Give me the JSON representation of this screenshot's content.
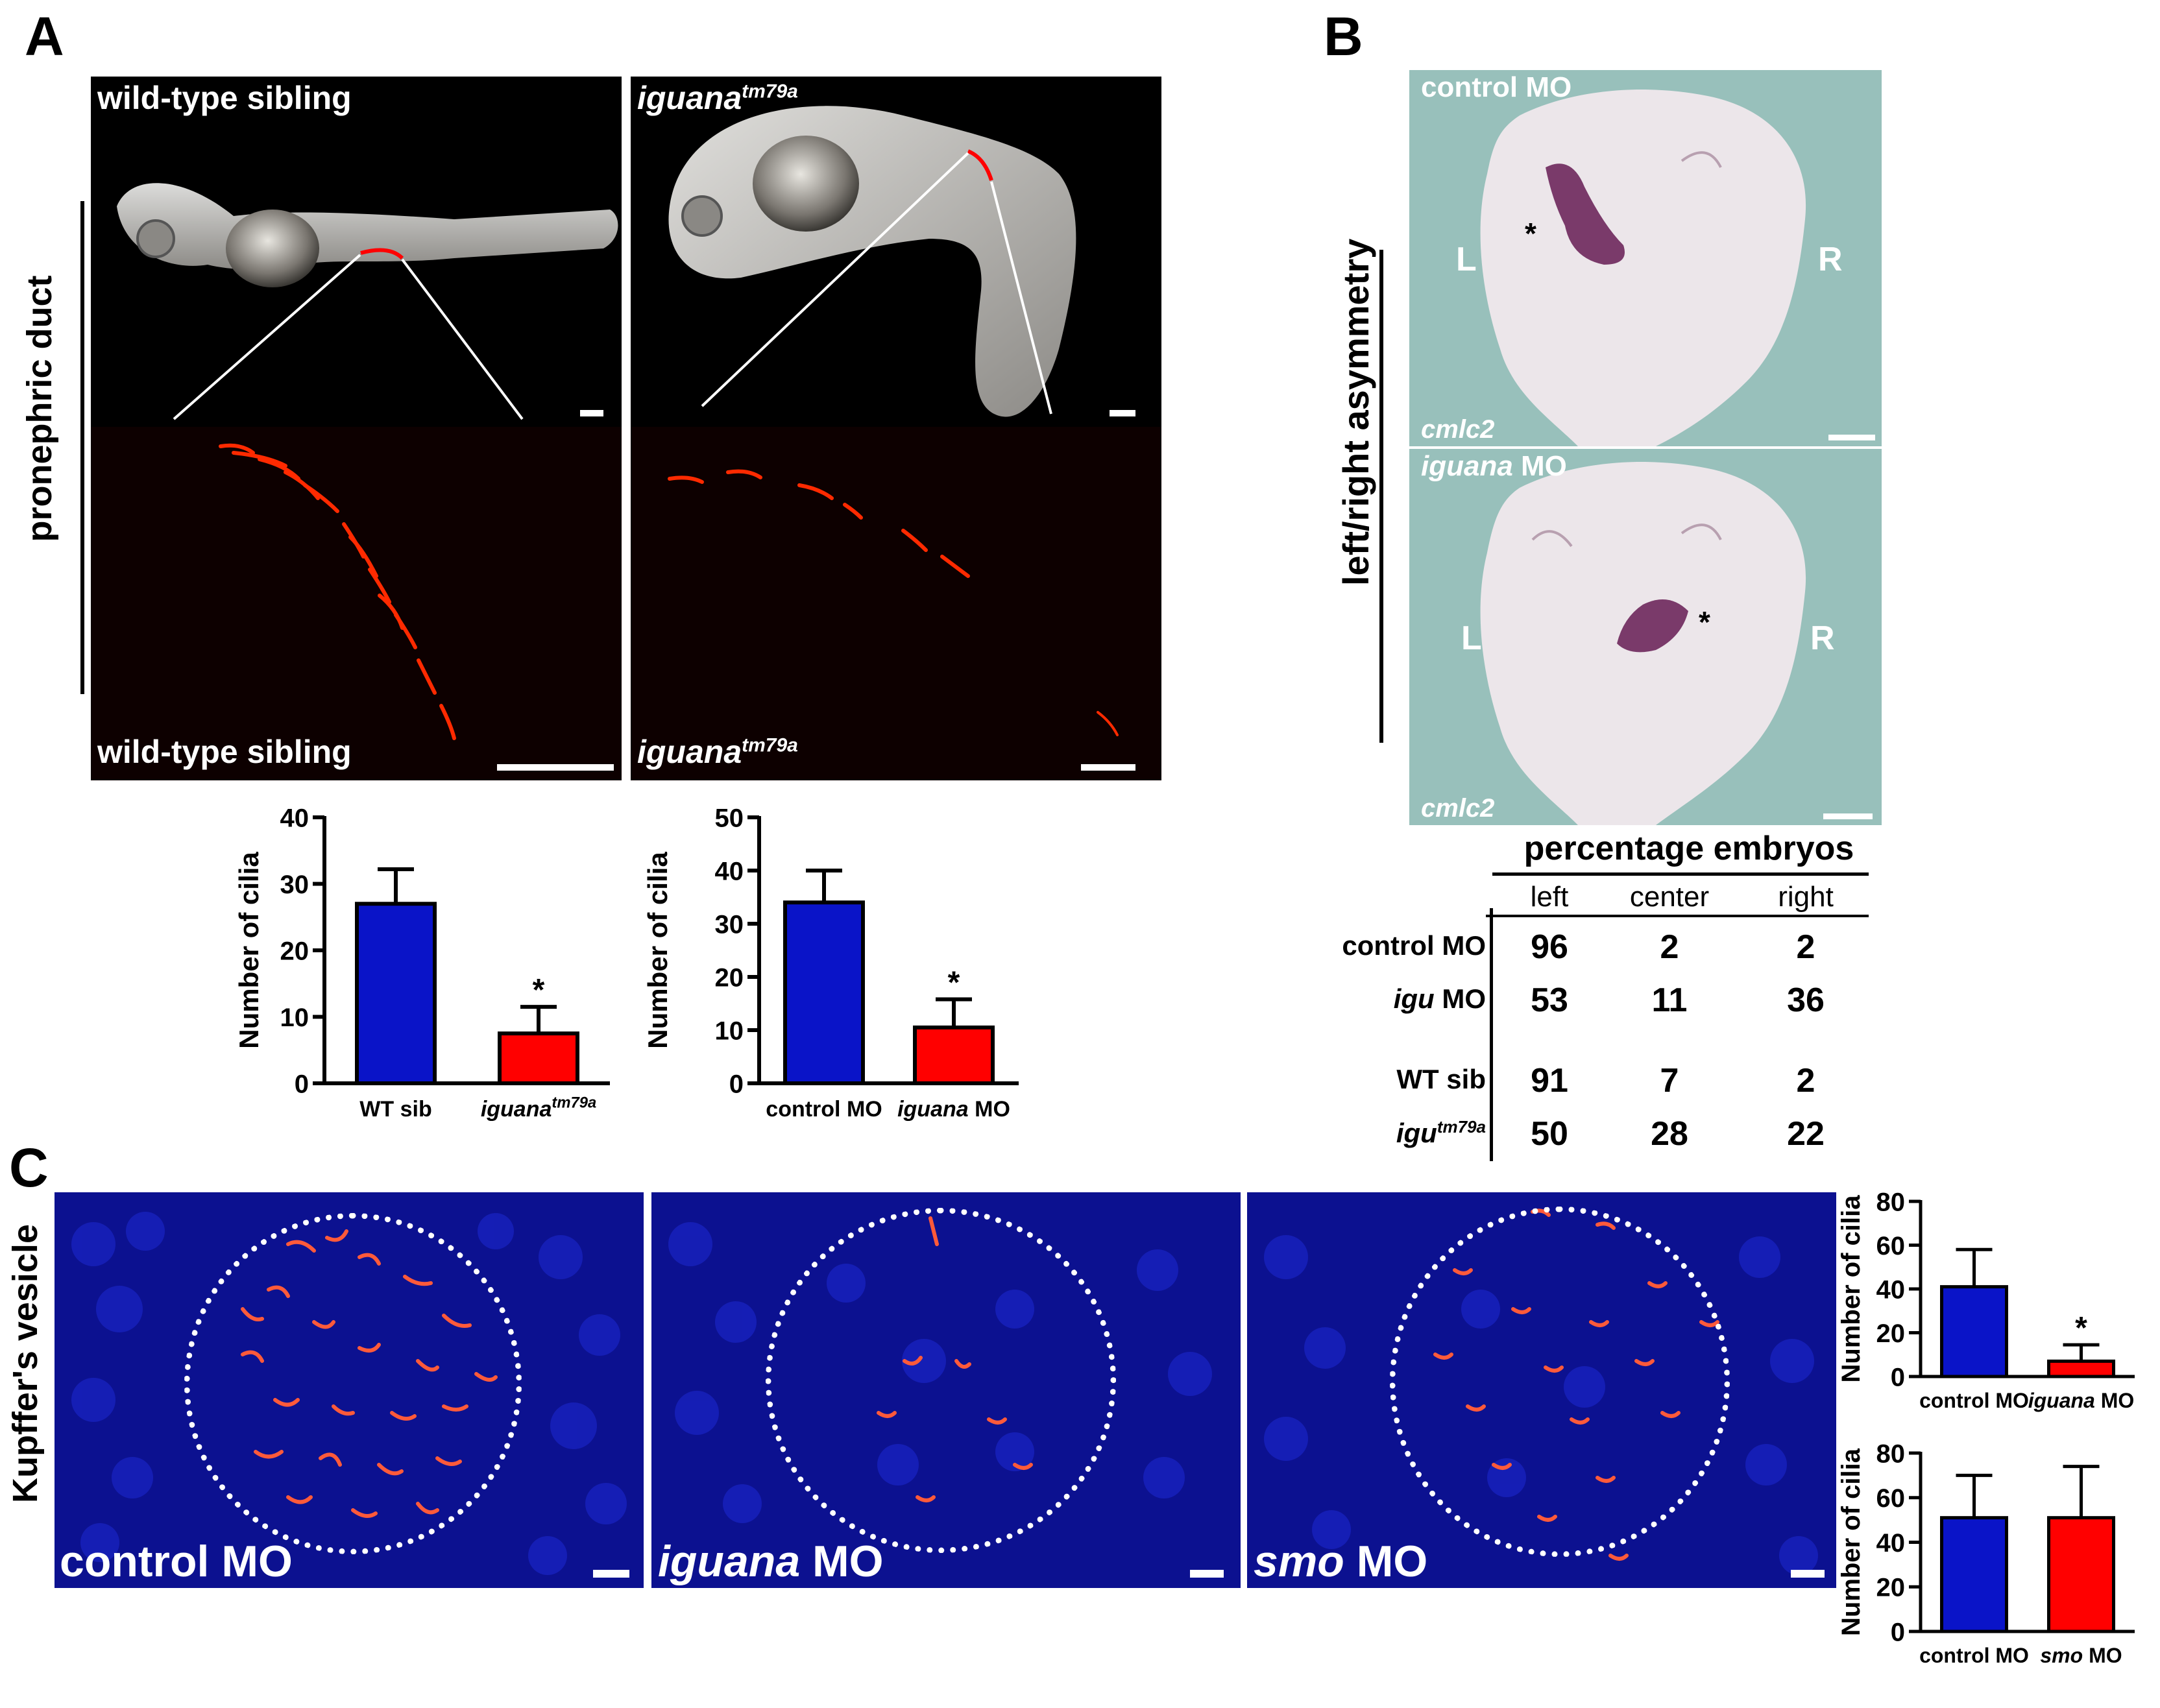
{
  "panels": {
    "A": "A",
    "B": "B",
    "C": "C"
  },
  "panelA": {
    "side_label": "pronephric duct",
    "top_left_label": "wild-type sibling",
    "top_right_label_main": "iguana",
    "top_right_label_sup": "tm79a",
    "bottom_left_label": "wild-type sibling",
    "bottom_right_label_main": "iguana",
    "bottom_right_label_sup": "tm79a"
  },
  "panelB": {
    "side_label": "left/right asymmetry",
    "top_label": "control MO",
    "bottom_label_main": "iguana",
    "bottom_label_rest": " MO",
    "gene_label": "cmlc2",
    "L": "L",
    "R": "R",
    "star": "*",
    "table": {
      "title": "percentage embryos",
      "headers": [
        "left",
        "center",
        "right"
      ],
      "rows": [
        {
          "label_main": "control MO",
          "label_it": "",
          "label_sup": "",
          "values": [
            "96",
            "2",
            "2"
          ]
        },
        {
          "label_main": " MO",
          "label_it": "igu",
          "label_sup": "",
          "values": [
            "53",
            "11",
            "36"
          ]
        },
        {
          "label_main": "WT sib",
          "label_it": "",
          "label_sup": "",
          "values": [
            "91",
            "7",
            "2"
          ]
        },
        {
          "label_main": "",
          "label_it": "igu",
          "label_sup": "tm79a",
          "values": [
            "50",
            "28",
            "22"
          ]
        }
      ]
    }
  },
  "panelC": {
    "side_label": "Kupffer's vesicle",
    "labels": [
      {
        "it": "",
        "rest": "control MO"
      },
      {
        "it": "iguana",
        "rest": " MO"
      },
      {
        "it": "smo",
        "rest": " MO"
      }
    ]
  },
  "chart_data": [
    {
      "id": "A1",
      "type": "bar",
      "categories": [
        "WT sib",
        "iguana tm79a"
      ],
      "values": [
        27,
        7.5
      ],
      "errors": [
        5.2,
        4
      ],
      "significance": [
        "",
        "*"
      ],
      "colors": [
        "#0a14c8",
        "#ff0000"
      ],
      "ylabel": "Number of cilia",
      "ylim": [
        0,
        40
      ],
      "yticks": [
        0,
        10,
        20,
        30,
        40
      ]
    },
    {
      "id": "A2",
      "type": "bar",
      "categories": [
        "control MO",
        "iguana MO"
      ],
      "values": [
        34,
        10.5
      ],
      "errors": [
        6,
        5.3
      ],
      "significance": [
        "",
        "*"
      ],
      "colors": [
        "#0a14c8",
        "#ff0000"
      ],
      "ylabel": "Number of cilia",
      "ylim": [
        0,
        50
      ],
      "yticks": [
        0,
        10,
        20,
        30,
        40,
        50
      ]
    },
    {
      "id": "C1",
      "type": "bar",
      "categories": [
        "control MO",
        "iguana MO"
      ],
      "values": [
        41,
        7
      ],
      "errors": [
        17,
        7.5
      ],
      "significance": [
        "",
        "*"
      ],
      "colors": [
        "#0a14c8",
        "#ff0000"
      ],
      "ylabel": "Number of cilia",
      "ylim": [
        0,
        80
      ],
      "yticks": [
        0,
        20,
        40,
        60,
        80
      ]
    },
    {
      "id": "C2",
      "type": "bar",
      "categories": [
        "control MO",
        "smo MO"
      ],
      "values": [
        51,
        51
      ],
      "errors": [
        19,
        23
      ],
      "significance": [
        "",
        ""
      ],
      "colors": [
        "#0a14c8",
        "#ff0000"
      ],
      "ylabel": "Number of cilia",
      "ylim": [
        0,
        80
      ],
      "yticks": [
        0,
        20,
        40,
        60,
        80
      ]
    }
  ]
}
